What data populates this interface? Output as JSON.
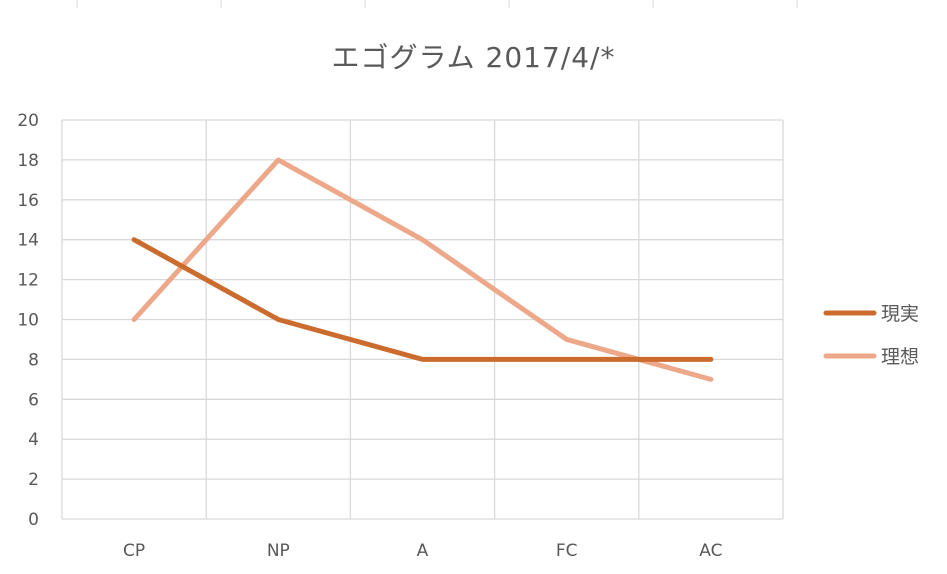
{
  "chart_data": {
    "type": "line",
    "title": "エゴグラム 2017/4/*",
    "categories": [
      "CP",
      "NP",
      "A",
      "FC",
      "AC"
    ],
    "series": [
      {
        "name": "現実",
        "values": [
          14,
          10,
          8,
          8,
          8
        ],
        "color": "#CC6B2E"
      },
      {
        "name": "理想",
        "values": [
          10,
          18,
          14,
          9,
          7
        ],
        "color": "#EDA88A"
      }
    ],
    "ylim": [
      0,
      20
    ],
    "yticks": [
      0,
      2,
      4,
      6,
      8,
      10,
      12,
      14,
      16,
      18,
      20
    ],
    "xlabel": "",
    "ylabel": "",
    "grid": true,
    "legend": "right"
  }
}
